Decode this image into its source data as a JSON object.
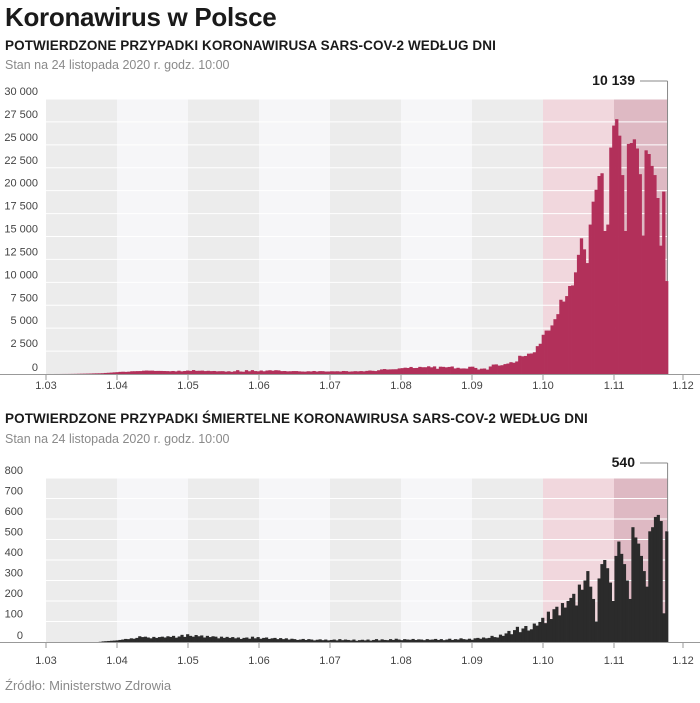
{
  "main_title": "Koronawirus w Polsce",
  "source": "Źródło: Ministerstwo Zdrowia",
  "colors": {
    "cases": "#b2305a",
    "deaths": "#2b2b2b",
    "band_dark": "#ececec",
    "band_light": "#f6f6f8",
    "highlight_oct": "#f1d7dd",
    "highlight_nov": "#deb9c3"
  },
  "chart_data": [
    {
      "type": "bar",
      "title": "POTWIERDZONE PRZYPADKI KORONAWIRUSA SARS-COV-2 WEDŁUG DNI",
      "subtitle": "Stan na 24 listopada 2020 r. godz. 10:00",
      "x_ticks": [
        "1.03",
        "1.04",
        "1.05",
        "1.06",
        "1.07",
        "1.08",
        "1.09",
        "1.10",
        "1.11",
        "1.12"
      ],
      "y_ticks": [
        "0",
        "2 500",
        "5 000",
        "7 500",
        "10 000",
        "12 500",
        "15 000",
        "17 500",
        "20 000",
        "22 500",
        "25 000",
        "27 500",
        "30 000"
      ],
      "ylim": [
        0,
        30000
      ],
      "annotation": "10 139",
      "series": [
        {
          "color": "#b2305a",
          "values": [
            1,
            0,
            2,
            2,
            4,
            6,
            8,
            11,
            15,
            20,
            28,
            35,
            40,
            48,
            55,
            66,
            73,
            78,
            90,
            115,
            135,
            156,
            182,
            200,
            235,
            250,
            235,
            255,
            300,
            305,
            315,
            320,
            360,
            380,
            365,
            370,
            335,
            340,
            335,
            325,
            316,
            300,
            330,
            287,
            360,
            290,
            330,
            380,
            340,
            430,
            345,
            355,
            370,
            320,
            350,
            315,
            330,
            290,
            305,
            310,
            260,
            300,
            240,
            300,
            420,
            270,
            250,
            420,
            300,
            420,
            320,
            295,
            380,
            300,
            380,
            410,
            360,
            415,
            395,
            315,
            325,
            290,
            300,
            320,
            320,
            290,
            270,
            260,
            300,
            280,
            330,
            270,
            315,
            310,
            270,
            275,
            300,
            290,
            300,
            270,
            330,
            315,
            260,
            280,
            310,
            290,
            320,
            290,
            340,
            380,
            350,
            320,
            410,
            500,
            540,
            490,
            505,
            515,
            520,
            610,
            640,
            690,
            660,
            770,
            650,
            660,
            780,
            740,
            740,
            840,
            730,
            830,
            570,
            800,
            780,
            730,
            770,
            820,
            610,
            680,
            600,
            610,
            590,
            790,
            800,
            660,
            490,
            580,
            600,
            480,
            820,
            1030,
            1050,
            920,
            960,
            1080,
            1140,
            1290,
            1230,
            1370,
            1990,
            1930,
            1970,
            2220,
            2240,
            2370,
            3040,
            3300,
            4280,
            4740,
            4740,
            5300,
            5980,
            6530,
            8100,
            7900,
            8500,
            9600,
            9660,
            11090,
            13000,
            14800,
            13600,
            12100,
            16300,
            18800,
            20100,
            21600,
            21900,
            15600,
            16300,
            24700,
            27100,
            27800,
            26000,
            21700,
            15600,
            25100,
            25200,
            25600,
            24600,
            21800,
            15100,
            24400,
            24000,
            22700,
            21700,
            19200,
            14000,
            19900,
            10139
          ]
        }
      ]
    },
    {
      "type": "bar",
      "title": "POTWIERDZONE PRZYPADKI ŚMIERTELNE KORONAWIRUSA SARS-COV-2 WEDŁUG DNI",
      "subtitle": "Stan na 24 listopada 2020 r. godz. 10:00",
      "x_ticks": [
        "1.03",
        "1.04",
        "1.05",
        "1.06",
        "1.07",
        "1.08",
        "1.09",
        "1.10",
        "1.11",
        "1.12"
      ],
      "y_ticks": [
        "0",
        "100",
        "200",
        "300",
        "400",
        "500",
        "600",
        "700",
        "800"
      ],
      "ylim": [
        0,
        800
      ],
      "annotation": "540",
      "series": [
        {
          "color": "#2b2b2b",
          "values": [
            0,
            0,
            0,
            0,
            0,
            0,
            0,
            0,
            0,
            0,
            0,
            0,
            0,
            0,
            0,
            0,
            0,
            0,
            1,
            3,
            4,
            5,
            6,
            7,
            8,
            10,
            12,
            15,
            14,
            18,
            16,
            20,
            28,
            24,
            26,
            22,
            18,
            25,
            20,
            24,
            26,
            22,
            28,
            25,
            30,
            21,
            27,
            35,
            25,
            38,
            30,
            26,
            34,
            28,
            32,
            22,
            30,
            24,
            28,
            26,
            18,
            26,
            20,
            25,
            20,
            24,
            18,
            22,
            15,
            20,
            22,
            16,
            26,
            18,
            24,
            16,
            20,
            22,
            15,
            18,
            20,
            14,
            19,
            14,
            18,
            12,
            16,
            14,
            10,
            12,
            15,
            10,
            14,
            12,
            8,
            11,
            13,
            9,
            12,
            8,
            10,
            12,
            8,
            14,
            9,
            12,
            10,
            8,
            12,
            6,
            9,
            11,
            8,
            12,
            7,
            10,
            14,
            8,
            13,
            10,
            9,
            14,
            10,
            16,
            12,
            9,
            14,
            12,
            11,
            15,
            10,
            13,
            12,
            9,
            14,
            11,
            12,
            15,
            10,
            14,
            9,
            12,
            16,
            10,
            14,
            12,
            18,
            14,
            12,
            16,
            11,
            18,
            20,
            16,
            22,
            18,
            20,
            30,
            24,
            22,
            36,
            30,
            42,
            54,
            38,
            58,
            74,
            48,
            66,
            78,
            56,
            62,
            90,
            80,
            98,
            118,
            92,
            148,
            112,
            160,
            172,
            130,
            190,
            168,
            200,
            215,
            235,
            178,
            280,
            255,
            300,
            346,
            270,
            210,
            100,
            310,
            380,
            400,
            360,
            290,
            200,
            420,
            490,
            430,
            380,
            300,
            210,
            560,
            510,
            480,
            420,
            346,
            270,
            540,
            560,
            610,
            620,
            590,
            140,
            540
          ]
        }
      ]
    }
  ]
}
